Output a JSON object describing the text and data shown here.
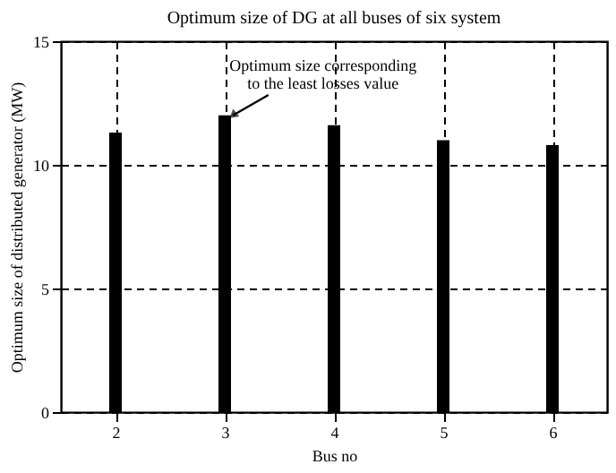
{
  "chart_data": {
    "type": "bar",
    "title": "Optimum size of DG at all buses of six system",
    "xlabel": "Bus no",
    "ylabel": "Optimum size of distributed generator (MW)",
    "x": [
      2,
      3,
      4,
      5,
      6
    ],
    "values": [
      11.3,
      12.0,
      11.6,
      11.0,
      10.8
    ],
    "color": "#000000",
    "xlim": [
      1.5,
      6.5
    ],
    "xticks": [
      2,
      3,
      4,
      5,
      6
    ],
    "ylim": [
      0,
      15
    ],
    "yticks": [
      0,
      5,
      10,
      15
    ],
    "grid": true,
    "annotations": [
      {
        "text": "Optimum size corresponding\nto the least losses value",
        "x": 3,
        "y": 12.0
      }
    ]
  }
}
